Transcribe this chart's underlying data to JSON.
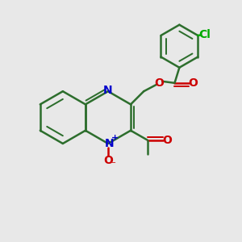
{
  "background_color": "#e8e8e8",
  "bond_color": "#2d6e2d",
  "bond_width": 1.8,
  "N_color": "#0000cc",
  "O_color": "#cc0000",
  "Cl_color": "#00aa00",
  "text_fontsize": 10,
  "figsize": [
    3.0,
    3.0
  ],
  "dpi": 100,
  "xlim": [
    0,
    10
  ],
  "ylim": [
    0,
    10
  ]
}
